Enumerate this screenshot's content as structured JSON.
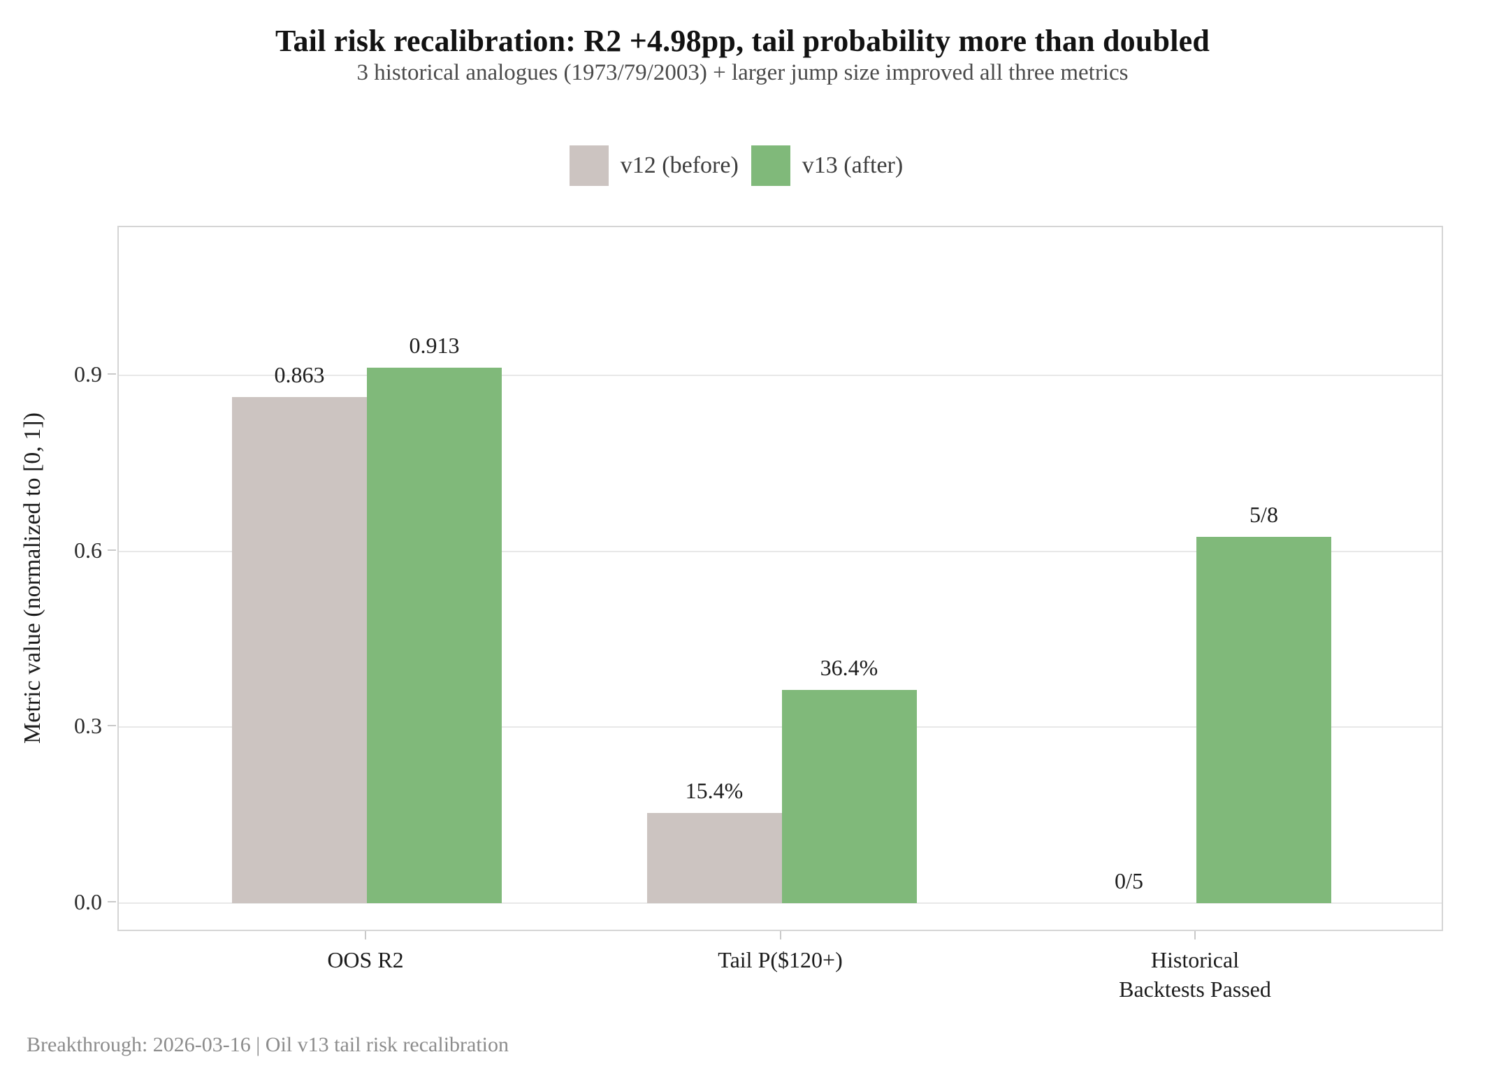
{
  "chart_data": {
    "type": "bar",
    "title": "Tail risk recalibration: R2 +4.98pp, tail probability more than doubled",
    "subtitle": "3 historical analogues (1973/79/2003) + larger jump size improved all three metrics",
    "categories": [
      "OOS R2",
      "Tail P($120+)",
      "Historical\nBacktests Passed"
    ],
    "series": [
      {
        "name": "v12 (before)",
        "color": "#ccc4c1",
        "values": [
          0.863,
          0.154,
          0.0
        ],
        "value_labels": [
          "0.863",
          "15.4%",
          "0/5"
        ]
      },
      {
        "name": "v13 (after)",
        "color": "#80b97a",
        "values": [
          0.913,
          0.364,
          0.625
        ],
        "value_labels": [
          "0.913",
          "36.4%",
          "5/8"
        ]
      }
    ],
    "xlabel": "",
    "ylabel": "Metric value (normalized to [0, 1])",
    "yticks": [
      0.0,
      0.3,
      0.6,
      0.9
    ],
    "ytick_labels": [
      "0.0",
      "0.3",
      "0.6",
      "0.9"
    ],
    "ylim": [
      -0.05,
      1.153
    ],
    "grid": true,
    "legend_position": "top-center"
  },
  "colors": {
    "grid": "#e8e8e8",
    "panel_border": "#d5d5d5",
    "tick": "#c9c9c9",
    "bar_before": "#ccc4c1",
    "bar_after": "#80b97a"
  },
  "footer": {
    "text": "Breakthrough: 2026-03-16  |  Oil v13 tail risk recalibration"
  }
}
